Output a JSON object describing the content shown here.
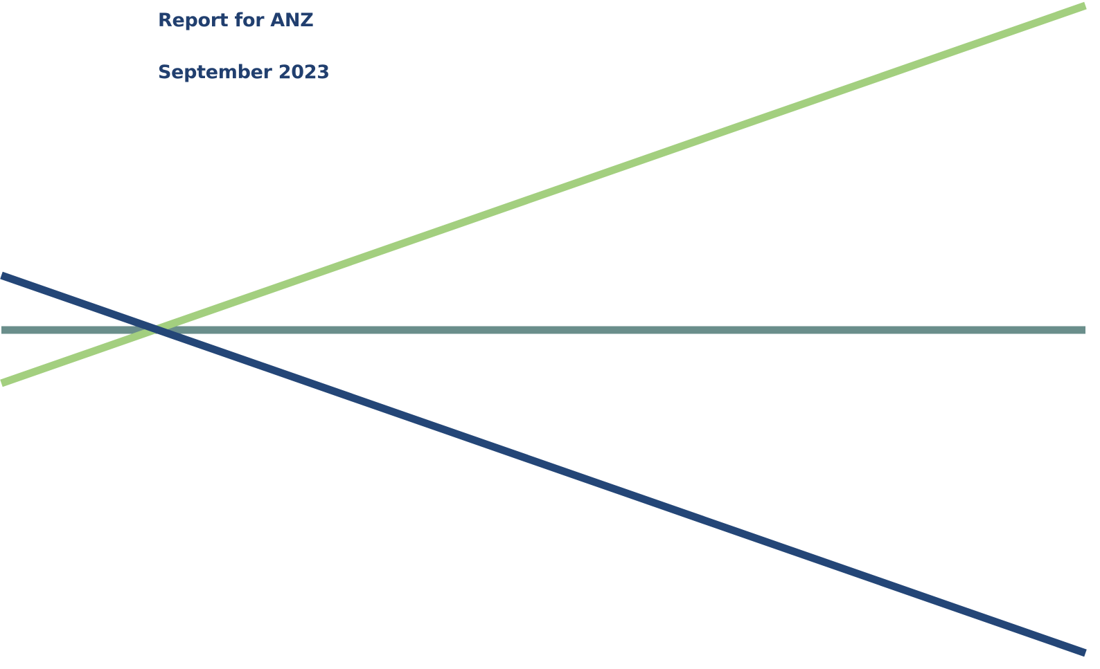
{
  "cover": {
    "title": "Report for ANZ",
    "date": "September 2023"
  },
  "colors": {
    "heading_text": "#213f6f",
    "navy_line": "#244677",
    "green_line": "#a3cf7f",
    "teal_line": "#6a8e8b"
  }
}
